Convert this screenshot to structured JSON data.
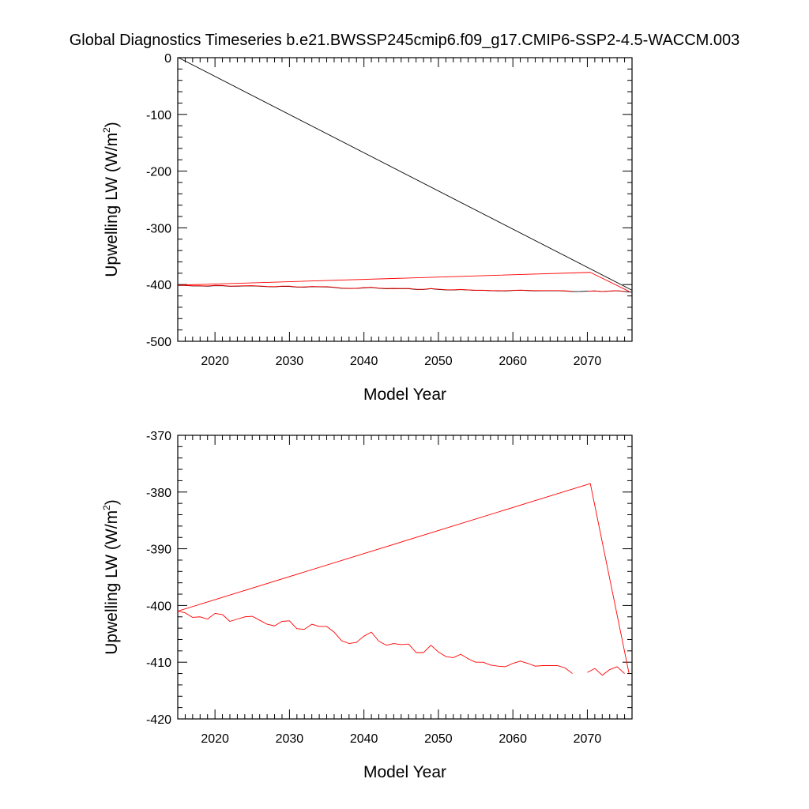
{
  "figure": {
    "title": "Global Diagnostics Timeseries b.e21.BWSSP245cmip6.f09_g17.CMIP6-SSP2-4.5-WACCM.003"
  },
  "chart_data": [
    {
      "type": "line",
      "title": "",
      "xlabel": "Model Year",
      "ylabel_main": "Upwelling LW (W/m",
      "ylabel_sup": "2",
      "ylabel_close": ")",
      "xlim": [
        2015,
        2076
      ],
      "ylim": [
        -500,
        0
      ],
      "xticks": [
        2020,
        2030,
        2040,
        2050,
        2060,
        2070
      ],
      "yticks": [
        0,
        -100,
        -200,
        -300,
        -400,
        -500
      ],
      "grid": false,
      "legend": "none",
      "series": [
        {
          "color": "#000000",
          "note_style": "thin",
          "x": [
            2015.1,
            2076
          ],
          "y": [
            0,
            -410
          ]
        },
        {
          "color": "#ff0000",
          "x": [
            2015,
            2070.4,
            2075.6
          ],
          "y": [
            -401,
            -378.5,
            -412
          ]
        },
        {
          "color": "#000000",
          "x": [
            2015,
            2016,
            2017,
            2018,
            2019,
            2020,
            2021,
            2022,
            2023,
            2024,
            2025,
            2026,
            2027,
            2028,
            2029,
            2030,
            2031,
            2032,
            2033,
            2034,
            2035,
            2036,
            2037,
            2038,
            2039,
            2040,
            2041,
            2042,
            2043,
            2044,
            2045,
            2046,
            2047,
            2048,
            2049,
            2050,
            2051,
            2052,
            2053,
            2054,
            2055,
            2056,
            2057,
            2058,
            2059,
            2060,
            2061,
            2062,
            2063,
            2064,
            2065,
            2066,
            2067,
            2068,
            2069,
            2070,
            2071,
            2072,
            2073,
            2074,
            2075,
            2076
          ],
          "y": [
            -401.5,
            -401.6,
            -402.4,
            -402.3,
            -402.9,
            -401.9,
            -402.0,
            -403.1,
            -402.9,
            -402.4,
            -402.3,
            -402.9,
            -403.7,
            -404.0,
            -403.1,
            -403.2,
            -404.5,
            -404.6,
            -403.7,
            -404.0,
            -404.1,
            -405.1,
            -406.5,
            -407.0,
            -406.8,
            -405.9,
            -405.0,
            -406.6,
            -407.4,
            -407.1,
            -407.2,
            -407.3,
            -408.6,
            -408.7,
            -407.3,
            -408.6,
            -409.4,
            -409.6,
            -408.8,
            -409.6,
            -410.3,
            -410.3,
            -410.8,
            -411.1,
            -411.2,
            -410.4,
            -410.1,
            -410.5,
            -411.1,
            -410.9,
            -410.9,
            -410.9,
            -411.3,
            -412.3,
            -412.1,
            -411.6,
            -411.3,
            -412.4,
            -411.4,
            -411.0,
            -412.2,
            -413.5
          ]
        },
        {
          "color": "#ff0000",
          "x": [
            2015,
            2016,
            2017,
            2018,
            2019,
            2020,
            2021,
            2022,
            2023,
            2024,
            2025,
            2026,
            2027,
            2028,
            2029,
            2030,
            2031,
            2032,
            2033,
            2034,
            2035,
            2036,
            2037,
            2038,
            2039,
            2040,
            2041,
            2042,
            2043,
            2044,
            2045,
            2046,
            2047,
            2048,
            2049,
            2050,
            2051,
            2052,
            2053,
            2054,
            2055,
            2056,
            2057,
            2058,
            2059,
            2060,
            2061,
            2062,
            2063,
            2064,
            2065,
            2066,
            2067,
            2068,
            2069,
            2070,
            2071,
            2072,
            2073,
            2074,
            2075
          ],
          "y": [
            -401.0,
            -401.3,
            -402.1,
            -402.0,
            -402.4,
            -401.4,
            -401.6,
            -402.8,
            -402.4,
            -402.0,
            -401.9,
            -402.6,
            -403.3,
            -403.6,
            -402.8,
            -402.7,
            -404.1,
            -404.2,
            -403.3,
            -403.7,
            -403.7,
            -404.7,
            -406.2,
            -406.7,
            -406.5,
            -405.4,
            -404.7,
            -406.3,
            -407.0,
            -406.7,
            -406.9,
            -406.8,
            -408.3,
            -408.3,
            -407.0,
            -408.2,
            -409.0,
            -409.2,
            -408.6,
            -409.4,
            -410.0,
            -410.0,
            -410.5,
            -410.7,
            -410.8,
            -410.2,
            -409.8,
            -410.2,
            -410.7,
            -410.6,
            -410.6,
            -410.6,
            -411.0,
            -412.0,
            null,
            -411.8,
            -411.1,
            -412.3,
            -411.3,
            -410.8,
            -412.0
          ]
        }
      ]
    },
    {
      "type": "line",
      "title": "",
      "xlabel": "Model Year",
      "ylabel_main": "Upwelling LW (W/m",
      "ylabel_sup": "2",
      "ylabel_close": ")",
      "xlim": [
        2015,
        2076
      ],
      "ylim": [
        -420,
        -370
      ],
      "xticks": [
        2020,
        2030,
        2040,
        2050,
        2060,
        2070
      ],
      "yticks": [
        -370,
        -380,
        -390,
        -400,
        -410,
        -420
      ],
      "grid": false,
      "legend": "none",
      "series": [
        {
          "color": "#ff0000",
          "x": [
            2015,
            2070.4,
            2075.6
          ],
          "y": [
            -401,
            -378.5,
            -412
          ]
        },
        {
          "color": "#ff0000",
          "x": [
            2015,
            2016,
            2017,
            2018,
            2019,
            2020,
            2021,
            2022,
            2023,
            2024,
            2025,
            2026,
            2027,
            2028,
            2029,
            2030,
            2031,
            2032,
            2033,
            2034,
            2035,
            2036,
            2037,
            2038,
            2039,
            2040,
            2041,
            2042,
            2043,
            2044,
            2045,
            2046,
            2047,
            2048,
            2049,
            2050,
            2051,
            2052,
            2053,
            2054,
            2055,
            2056,
            2057,
            2058,
            2059,
            2060,
            2061,
            2062,
            2063,
            2064,
            2065,
            2066,
            2067,
            2068,
            2069,
            2070,
            2071,
            2072,
            2073,
            2074,
            2075
          ],
          "y": [
            -401.0,
            -401.3,
            -402.1,
            -402.0,
            -402.4,
            -401.4,
            -401.6,
            -402.8,
            -402.4,
            -402.0,
            -401.9,
            -402.6,
            -403.3,
            -403.6,
            -402.8,
            -402.7,
            -404.1,
            -404.2,
            -403.3,
            -403.7,
            -403.7,
            -404.7,
            -406.2,
            -406.7,
            -406.5,
            -405.4,
            -404.7,
            -406.3,
            -407.0,
            -406.7,
            -406.9,
            -406.8,
            -408.3,
            -408.3,
            -407.0,
            -408.2,
            -409.0,
            -409.2,
            -408.6,
            -409.4,
            -410.0,
            -410.0,
            -410.5,
            -410.7,
            -410.8,
            -410.2,
            -409.8,
            -410.2,
            -410.7,
            -410.6,
            -410.6,
            -410.6,
            -411.0,
            -412.0,
            null,
            -411.8,
            -411.1,
            -412.3,
            -411.3,
            -410.8,
            -412.0
          ]
        }
      ]
    }
  ]
}
